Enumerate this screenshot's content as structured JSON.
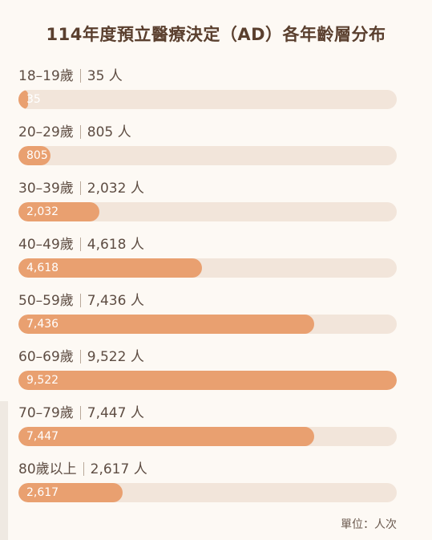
{
  "title": "114年度預立醫療決定（AD）各年齡層分布",
  "unit_note": "單位：人次",
  "bar_color": "#e9a070",
  "track_color": "#f2e5da",
  "chart_data": {
    "type": "bar",
    "orientation": "horizontal",
    "title": "114年度預立醫療決定（AD）各年齡層分布",
    "categories": [
      "18–19歲",
      "20–29歲",
      "30–39歲",
      "40–49歲",
      "50–59歲",
      "60–69歲",
      "70–79歲",
      "80歲以上"
    ],
    "values": [
      35,
      805,
      2032,
      4618,
      7436,
      9522,
      7447,
      2617
    ],
    "value_labels": [
      "35",
      "805",
      "2,032",
      "4,618",
      "7,436",
      "9,522",
      "7,447",
      "2,617"
    ],
    "row_labels": [
      "35 人",
      "805 人",
      "2,032 人",
      "4,618 人",
      "7,436 人",
      "9,522 人",
      "7,447 人",
      "2,617 人"
    ],
    "xlim": [
      0,
      9522
    ],
    "grid": false,
    "legend": "none"
  }
}
